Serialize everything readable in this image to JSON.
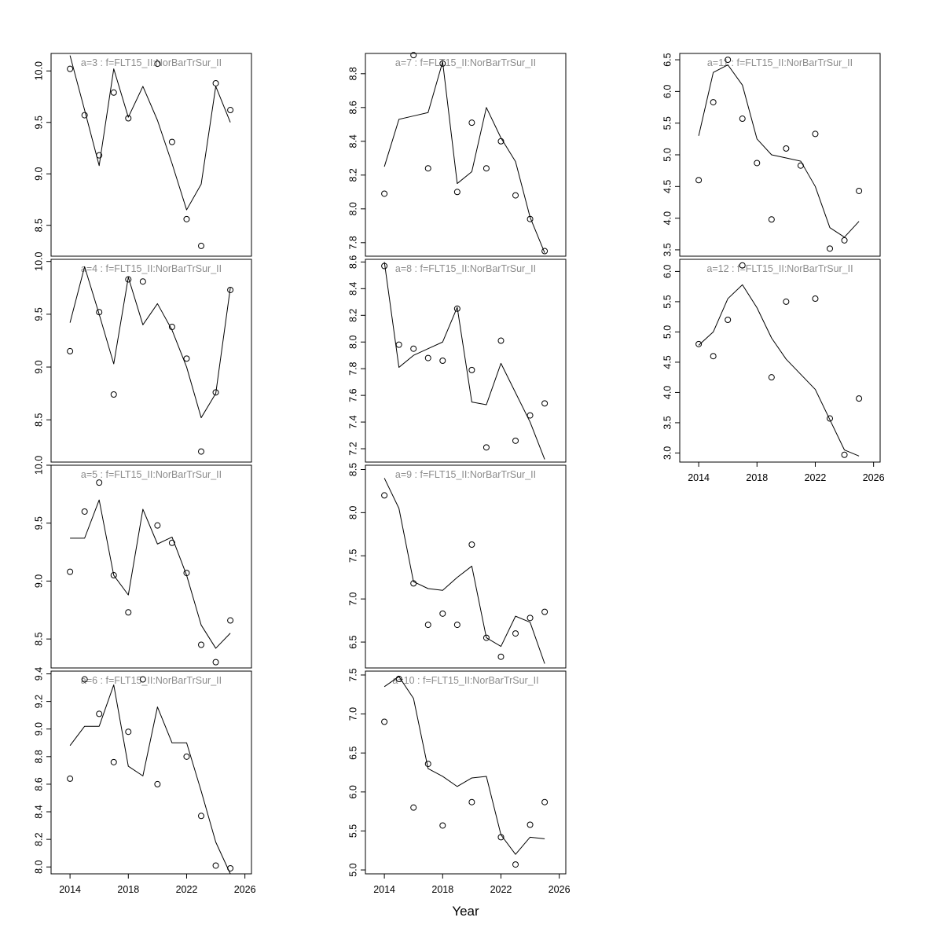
{
  "chart_data": {
    "type": "line",
    "x_label": "Year",
    "x": [
      2014,
      2015,
      2016,
      2017,
      2018,
      2019,
      2020,
      2021,
      2022,
      2023,
      2024,
      2025
    ],
    "xticks": [
      "2014",
      "2018",
      "2022",
      "2026"
    ],
    "xlim": [
      2012.7,
      2026.45
    ],
    "point_style": "open-circle",
    "line_color": "#000000",
    "title_color": "#8c8c8c",
    "panels": [
      {
        "title": "a=3 : f=FLT15_II:NorBarTrSur_II",
        "row": 0,
        "col": 0,
        "x_axis": false,
        "ylim": [
          8.2,
          10.17
        ],
        "yticks": [
          "8.5",
          "9.0",
          "9.5",
          "10.0"
        ],
        "points": [
          10.02,
          9.57,
          9.18,
          9.79,
          9.54,
          null,
          10.07,
          9.31,
          8.56,
          8.3,
          9.88,
          9.62
        ],
        "line": [
          10.15,
          9.62,
          9.08,
          10.02,
          9.55,
          9.85,
          9.52,
          9.1,
          8.65,
          8.9,
          9.85,
          9.5
        ]
      },
      {
        "title": "a=4 : f=FLT15_II:NorBarTrSur_II",
        "row": 1,
        "col": 0,
        "x_axis": false,
        "ylim": [
          8.1,
          10.02
        ],
        "yticks": [
          "8.5",
          "9.0",
          "9.5",
          "10.0"
        ],
        "points": [
          9.15,
          null,
          9.52,
          8.74,
          9.83,
          9.81,
          null,
          9.38,
          9.08,
          8.2,
          8.76,
          9.73
        ],
        "line": [
          9.42,
          9.95,
          9.5,
          9.03,
          9.85,
          9.4,
          9.6,
          9.35,
          9.0,
          8.52,
          8.75,
          9.75
        ]
      },
      {
        "title": "a=5 : f=FLT15_II:NorBarTrSur_II",
        "row": 2,
        "col": 0,
        "x_axis": false,
        "ylim": [
          8.25,
          10.0
        ],
        "yticks": [
          "8.5",
          "9.0",
          "9.5",
          "10.0"
        ],
        "points": [
          9.08,
          9.6,
          9.85,
          9.05,
          8.73,
          null,
          9.48,
          9.33,
          9.07,
          8.45,
          8.3,
          8.66
        ],
        "line": [
          9.37,
          9.37,
          9.7,
          9.05,
          8.88,
          9.62,
          9.32,
          9.38,
          9.05,
          8.62,
          8.42,
          8.55
        ]
      },
      {
        "title": "a=6 : f=FLT15_II:NorBarTrSur_II",
        "row": 3,
        "col": 0,
        "x_axis": true,
        "ylim": [
          7.95,
          9.42
        ],
        "yticks": [
          "8.0",
          "8.2",
          "8.4",
          "8.6",
          "8.8",
          "9.0",
          "9.2",
          "9.4"
        ],
        "points": [
          8.64,
          9.36,
          9.11,
          8.76,
          8.98,
          9.36,
          8.6,
          null,
          8.8,
          8.37,
          8.01,
          7.99
        ],
        "line": [
          8.88,
          9.02,
          9.02,
          9.32,
          8.73,
          8.66,
          9.16,
          8.9,
          8.9,
          8.55,
          8.18,
          7.95
        ]
      },
      {
        "title": "a=7 : f=FLT15_II:NorBarTrSur_II",
        "row": 0,
        "col": 1,
        "x_axis": false,
        "ylim": [
          7.72,
          8.92
        ],
        "yticks": [
          "7.8",
          "8.0",
          "8.2",
          "8.4",
          "8.6",
          "8.8"
        ],
        "points": [
          8.09,
          null,
          8.91,
          8.24,
          8.86,
          8.1,
          8.51,
          8.24,
          8.4,
          8.08,
          7.94,
          7.75
        ],
        "line": [
          8.25,
          8.53,
          8.55,
          8.57,
          8.87,
          8.15,
          8.22,
          8.6,
          8.42,
          8.28,
          7.95,
          7.74
        ]
      },
      {
        "title": "a=8 : f=FLT15_II:NorBarTrSur_II",
        "row": 1,
        "col": 1,
        "x_axis": false,
        "ylim": [
          7.1,
          8.62
        ],
        "yticks": [
          "7.2",
          "7.4",
          "7.6",
          "7.8",
          "8.0",
          "8.2",
          "8.4",
          "8.6"
        ],
        "points": [
          8.57,
          7.98,
          7.95,
          7.88,
          7.86,
          8.25,
          7.79,
          7.21,
          8.01,
          7.26,
          7.45,
          7.54
        ],
        "line": [
          8.6,
          7.81,
          7.9,
          7.95,
          8.0,
          8.26,
          7.55,
          7.53,
          7.84,
          7.62,
          7.4,
          7.12
        ]
      },
      {
        "title": "a=9 : f=FLT15_II:NorBarTrSur_II",
        "row": 2,
        "col": 1,
        "x_axis": false,
        "ylim": [
          6.2,
          8.55
        ],
        "yticks": [
          "6.5",
          "7.0",
          "7.5",
          "8.0",
          "8.5"
        ],
        "points": [
          8.2,
          null,
          7.18,
          6.7,
          6.83,
          6.7,
          7.63,
          6.55,
          6.33,
          6.6,
          6.78,
          6.85
        ],
        "line": [
          8.4,
          8.05,
          7.2,
          7.12,
          7.1,
          7.25,
          7.38,
          6.55,
          6.45,
          6.8,
          6.73,
          6.25
        ]
      },
      {
        "title": "a=10 : f=FLT15_II:NorBarTrSur_II",
        "row": 3,
        "col": 1,
        "x_axis": true,
        "ylim": [
          4.95,
          7.55
        ],
        "yticks": [
          "5.0",
          "5.5",
          "6.0",
          "6.5",
          "7.0",
          "7.5"
        ],
        "points": [
          6.9,
          7.45,
          5.8,
          6.36,
          5.57,
          null,
          5.87,
          null,
          5.42,
          5.07,
          5.58,
          5.87
        ],
        "line": [
          7.35,
          7.48,
          7.2,
          6.3,
          6.2,
          6.07,
          6.18,
          6.2,
          5.45,
          5.2,
          5.42,
          5.4
        ]
      },
      {
        "title": "a=11 : f=FLT15_II:NorBarTrSur_II",
        "row": 0,
        "col": 2,
        "x_axis": false,
        "ylim": [
          3.4,
          6.6
        ],
        "yticks": [
          "3.5",
          "4.0",
          "4.5",
          "5.0",
          "5.5",
          "6.0",
          "6.5"
        ],
        "points": [
          4.6,
          5.83,
          6.5,
          5.57,
          4.87,
          3.98,
          5.1,
          4.83,
          5.33,
          3.52,
          3.65,
          4.43
        ],
        "line": [
          5.3,
          6.3,
          6.42,
          6.1,
          5.25,
          5.0,
          4.95,
          4.9,
          4.5,
          3.85,
          3.7,
          3.95
        ]
      },
      {
        "title": "a=12 : f=FLT15_II:NorBarTrSur_II",
        "row": 1,
        "col": 2,
        "x_axis": true,
        "ylim": [
          2.85,
          6.2
        ],
        "yticks": [
          "3.0",
          "3.5",
          "4.0",
          "4.5",
          "5.0",
          "5.5",
          "6.0"
        ],
        "points": [
          4.8,
          4.6,
          5.2,
          6.1,
          null,
          4.25,
          5.5,
          null,
          5.55,
          3.57,
          2.97,
          3.9
        ],
        "line": [
          4.78,
          5.0,
          5.55,
          5.78,
          5.4,
          4.9,
          4.55,
          4.3,
          4.05,
          3.55,
          3.05,
          2.95
        ]
      }
    ]
  }
}
